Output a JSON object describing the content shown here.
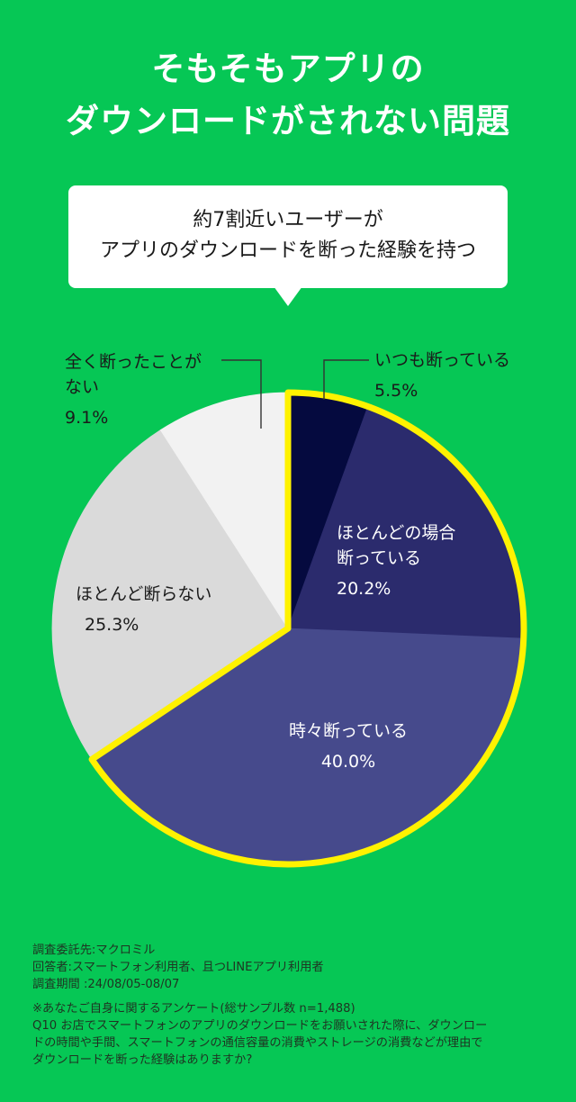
{
  "title": {
    "line1": "そもそもアプリの",
    "line2": "ダウンロードがされない問題"
  },
  "callout": {
    "line1": "約7割近いユーザーが",
    "line2": "アプリのダウンロードを断った経験を持つ"
  },
  "chart_data": {
    "type": "pie",
    "unit": "%",
    "slices": [
      {
        "label": "いつも断っている",
        "value": 5.5,
        "value_label": "5.5%",
        "color": "#050A3F",
        "highlighted": true
      },
      {
        "label": "ほとんどの場合断っている",
        "value": 20.2,
        "value_label": "20.2%",
        "color": "#2B2B6D",
        "highlighted": true
      },
      {
        "label": "時々断っている",
        "value": 40.0,
        "value_label": "40.0%",
        "color": "#464A8C",
        "highlighted": true
      },
      {
        "label": "ほとんど断らない",
        "value": 25.3,
        "value_label": "25.3%",
        "color": "#DADADA",
        "highlighted": false
      },
      {
        "label": "全く断ったことがない",
        "value": 9.1,
        "value_label": "9.1%",
        "color": "#F2F2F2",
        "highlighted": false
      }
    ],
    "highlight_color": "#FFF200"
  },
  "labels": {
    "always": {
      "line1": "いつも断っている",
      "pct": "5.5%"
    },
    "mostly": {
      "line1": "ほとんどの場合",
      "line2": "断っている",
      "pct": "20.2%"
    },
    "sometimes": {
      "line1": "時々断っている",
      "pct": "40.0%"
    },
    "rarely": {
      "line1": "ほとんど断らない",
      "pct": "25.3%"
    },
    "never": {
      "line1": "全く断ったことが",
      "line2": "ない",
      "pct": "9.1%"
    }
  },
  "footer": {
    "line1": "調査委託先:マクロミル",
    "line2": "回答者:スマートフォン利用者、且つLINEアプリ利用者",
    "line3": "調査期間 :24/08/05-08/07",
    "line4": "※あなたご自身に関するアンケート(総サンプル数 n=1,488)",
    "line5": "Q10 お店でスマートフォンのアプリのダウンロードをお願いされた際に、ダウンロー",
    "line6": "ドの時間や手間、スマートフォンの通信容量の消費やストレージの消費などが理由で",
    "line7": "ダウンロードを断った経験はありますか?"
  }
}
